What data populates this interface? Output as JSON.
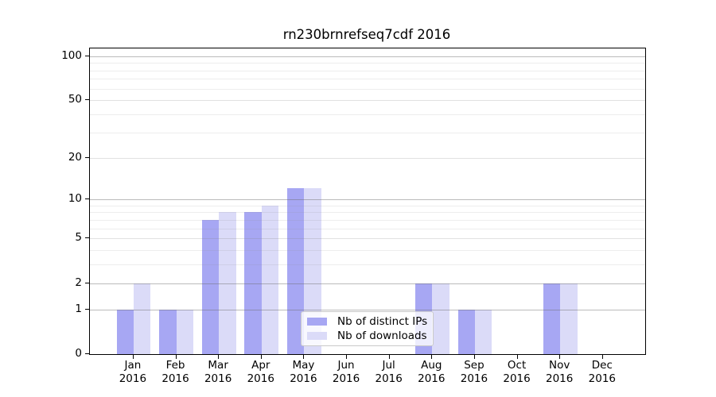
{
  "figure": {
    "title": "rn230brnrefseq7cdf 2016"
  },
  "chart_data": {
    "type": "bar",
    "title": "rn230brnrefseq7cdf 2016",
    "categories": [
      "Jan",
      "Feb",
      "Mar",
      "Apr",
      "May",
      "Jun",
      "Jul",
      "Aug",
      "Sep",
      "Oct",
      "Nov",
      "Dec"
    ],
    "x_tick_second_line": "2016",
    "series": [
      {
        "name": "Nb of distinct IPs",
        "color": "#a7a7f3",
        "values": [
          1,
          1,
          7,
          8,
          12,
          0,
          0,
          2,
          1,
          0,
          2,
          0
        ]
      },
      {
        "name": "Nb of downloads",
        "color": "#dbdbf8",
        "values": [
          2,
          1,
          8,
          9,
          12,
          0,
          0,
          2,
          1,
          0,
          2,
          0
        ]
      }
    ],
    "xlabel": "",
    "ylabel": "",
    "y_scale": "log1p",
    "ylim": [
      0,
      113
    ],
    "y_ticks": [
      0,
      1,
      2,
      5,
      10,
      20,
      50,
      100
    ],
    "gridlines": {
      "strong": [
        1,
        2,
        10,
        100
      ],
      "medium": [
        5,
        20,
        50
      ],
      "faint": [
        3,
        4,
        6,
        7,
        8,
        9,
        30,
        40,
        60,
        70,
        80,
        90
      ]
    },
    "grid": "on",
    "legend_position": "lower center-left inside plot",
    "legend_entries": [
      "Nb of distinct IPs",
      "Nb of downloads"
    ]
  }
}
